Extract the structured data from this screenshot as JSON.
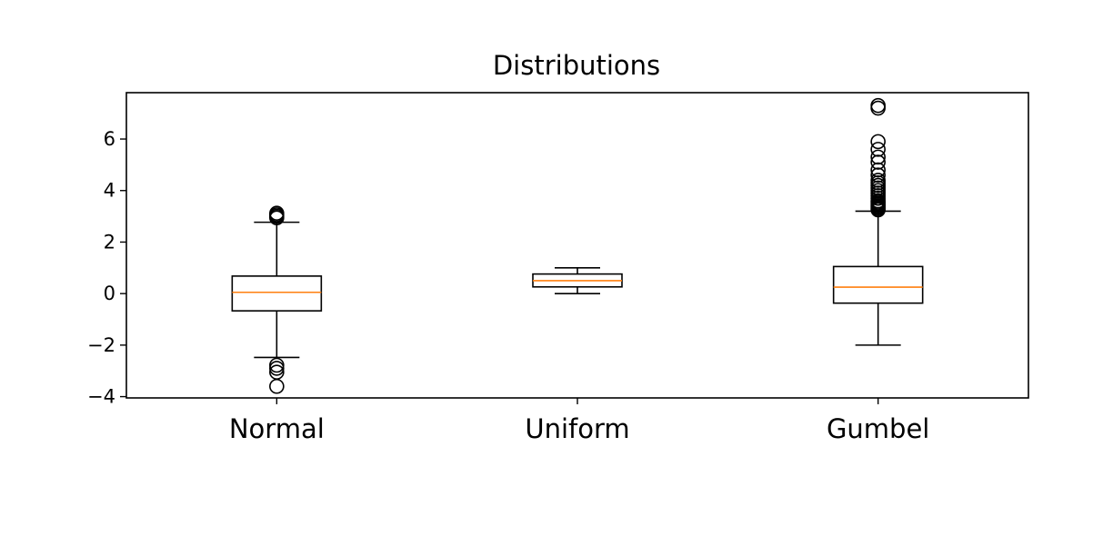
{
  "chart_data": {
    "type": "box",
    "title": "Distributions",
    "xlabel": "",
    "ylabel": "",
    "ylim": [
      -4.05,
      7.8
    ],
    "yticks": [
      -4,
      -2,
      0,
      2,
      4,
      6
    ],
    "ytick_labels": [
      "−4",
      "−2",
      "0",
      "2",
      "4",
      "6"
    ],
    "grid": false,
    "colors": {
      "box": "#000000",
      "median": "#ff7f0e",
      "flier": "#000000",
      "background": "#ffffff"
    },
    "series": [
      {
        "category": "Normal",
        "whisker_low": -2.48,
        "q1": -0.67,
        "median": 0.05,
        "q3": 0.68,
        "whisker_high": 2.77,
        "outliers": [
          3.12,
          3.06,
          3.0,
          2.94,
          -2.78,
          -2.9,
          -3.05,
          -3.6
        ]
      },
      {
        "category": "Uniform",
        "whisker_low": 0.0,
        "q1": 0.26,
        "median": 0.5,
        "q3": 0.76,
        "whisker_high": 1.0,
        "outliers": []
      },
      {
        "category": "Gumbel",
        "whisker_low": -2.0,
        "q1": -0.37,
        "median": 0.25,
        "q3": 1.05,
        "whisker_high": 3.2,
        "outliers": [
          7.2,
          7.3,
          5.9,
          5.6,
          5.3,
          5.1,
          4.8,
          4.6,
          4.4,
          4.3,
          4.2,
          4.1,
          4.0,
          3.9,
          3.8,
          3.7,
          3.6,
          3.55,
          3.5,
          3.45,
          3.4,
          3.35,
          3.3,
          3.25
        ]
      }
    ]
  }
}
